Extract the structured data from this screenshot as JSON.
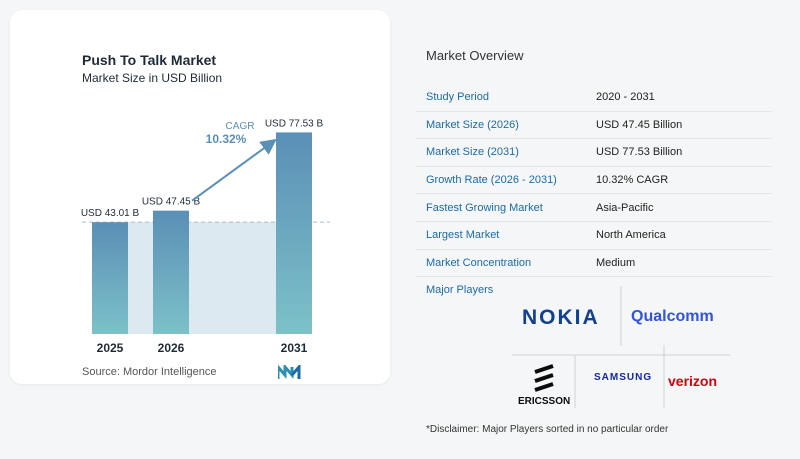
{
  "chart_data": {
    "type": "bar",
    "title": "Push To Talk Market",
    "subtitle": "Market Size in USD Billion",
    "categories": [
      "2025",
      "2026",
      "2031"
    ],
    "values": [
      43.01,
      47.45,
      77.53
    ],
    "data_labels": [
      "USD 43.01 B",
      "USD 47.45 B",
      "USD 77.53 B"
    ],
    "ylim": [
      0,
      80
    ],
    "cagr_label": "CAGR",
    "cagr_value": "10.32%",
    "colors": {
      "bar_top": "#5b8fb6",
      "bar_bottom": "#7cc1c8",
      "band": "#dde9f1",
      "arrow": "#5b8fb6"
    }
  },
  "source": "Source:  Mordor Intelligence",
  "overview": {
    "title": "Market Overview",
    "rows": [
      {
        "key": "Study Period",
        "value": "2020 - 2031"
      },
      {
        "key": "Market Size (2026)",
        "value": "USD 47.45 Billion"
      },
      {
        "key": "Market Size (2031)",
        "value": "USD 77.53 Billion"
      },
      {
        "key": "Growth Rate (2026 - 2031)",
        "value": "10.32% CAGR"
      },
      {
        "key": "Fastest Growing Market",
        "value": "Asia-Pacific"
      },
      {
        "key": "Largest Market",
        "value": "North America"
      },
      {
        "key": "Market Concentration",
        "value": "Medium"
      }
    ]
  },
  "players": {
    "title": "Major Players",
    "logos": [
      "NOKIA",
      "Qualcomm",
      "ERICSSON",
      "SAMSUNG",
      "verizon"
    ]
  },
  "disclaimer": "*Disclaimer: Major Players sorted in no particular order"
}
